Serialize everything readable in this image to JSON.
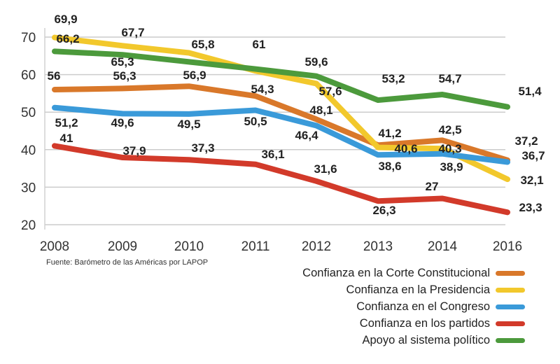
{
  "chart_data": {
    "type": "line",
    "categories": [
      "2008",
      "2009",
      "2010",
      "2011",
      "2012",
      "2013",
      "2014",
      "2016"
    ],
    "ylim": [
      20,
      70
    ],
    "yticks": [
      20,
      30,
      40,
      50,
      60,
      70
    ],
    "grid": true,
    "legend_position": "bottom-right",
    "source": "Fuente: Barómetro de las Américas por LAPOP",
    "series": [
      {
        "name": "Confianza en la Corte Constitucional",
        "color": "#d9782a",
        "values": [
          56,
          56.3,
          56.9,
          54.3,
          48.1,
          41.2,
          42.5,
          37.2
        ],
        "labels": [
          "56",
          "56,3",
          "56,9",
          "54,3",
          "48,1",
          "41,2",
          "42,5",
          "37,2"
        ]
      },
      {
        "name": "Confianza en la Presidencia",
        "color": "#f2c82c",
        "values": [
          69.9,
          67.7,
          65.8,
          61,
          57.6,
          40.6,
          40.3,
          32.1
        ],
        "labels": [
          "69,9",
          "67,7",
          "65,8",
          "61",
          "57,6",
          "40,6",
          "40,3",
          "32,1"
        ]
      },
      {
        "name": "Confianza en el Congreso",
        "color": "#3a9ad9",
        "values": [
          51.2,
          49.6,
          49.5,
          50.5,
          46.4,
          38.6,
          38.9,
          36.7
        ],
        "labels": [
          "51,2",
          "49,6",
          "49,5",
          "50,5",
          "46,4",
          "38,6",
          "38,9",
          "36,7"
        ]
      },
      {
        "name": "Confianza en los partidos",
        "color": "#d23a2a",
        "values": [
          41,
          37.9,
          37.3,
          36.1,
          31.6,
          26.3,
          27,
          23.3
        ],
        "labels": [
          "41",
          "37,9",
          "37,3",
          "36,1",
          "31,6",
          "26,3",
          "27",
          "23,3"
        ]
      },
      {
        "name": "Apoyo al sistema político",
        "color": "#4c9a3c",
        "values": [
          66.2,
          65.3,
          null,
          null,
          59.6,
          53.2,
          54.7,
          51.4
        ],
        "labels": [
          "66,2",
          "65,3",
          "",
          "",
          "59,6",
          "53,2",
          "54,7",
          "51,4"
        ]
      }
    ]
  }
}
